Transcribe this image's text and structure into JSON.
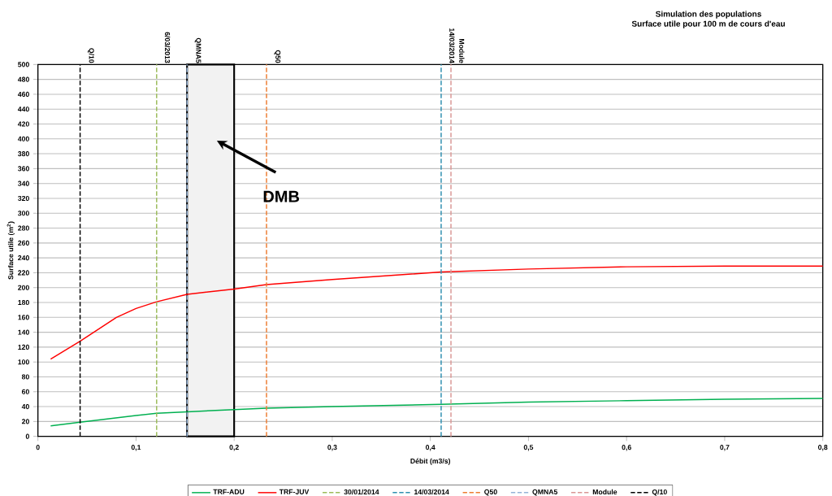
{
  "chart_data": {
    "type": "line",
    "title": "Simulation des populations",
    "subtitle": "Surface utile pour 100 m de cours d'eau",
    "xlabel": "Débit (m3/s)",
    "ylabel": "Surface utile (m$^{2}$)",
    "xlim": [
      0,
      0.8
    ],
    "xticks": [
      0,
      {
        "value": 0.1,
        "label": "0,1"
      },
      {
        "value": 0.2,
        "label": "0,2"
      },
      {
        "value": 0.3,
        "label": "0,3"
      },
      {
        "value": 0.4,
        "label": "0,4"
      },
      {
        "value": 0.5,
        "label": "0,5"
      },
      {
        "value": 0.6,
        "label": "0,6"
      },
      {
        "value": 0.7,
        "label": "0,7"
      },
      {
        "value": 0.8,
        "label": "0,8"
      }
    ],
    "ylim": [
      0,
      500
    ],
    "yticks": [
      0,
      20,
      40,
      60,
      80,
      100,
      120,
      140,
      160,
      180,
      200,
      220,
      240,
      260,
      280,
      300,
      320,
      340,
      360,
      380,
      400,
      420,
      440,
      460,
      480,
      500
    ],
    "grid": "y",
    "legend": "bottom",
    "marker": "none",
    "series": [
      {
        "name": "TRF-ADU",
        "color": "#00b050",
        "line_style": "solid",
        "x": [
          0.013,
          0.043,
          0.1,
          0.121,
          0.152,
          0.2,
          0.233,
          0.3,
          0.411,
          0.5,
          0.6,
          0.7,
          0.8
        ],
        "values": [
          14,
          19,
          28,
          31,
          33,
          36,
          38,
          40,
          43,
          46,
          48,
          50,
          51
        ]
      },
      {
        "name": "TRF-JUV",
        "color": "#ff0000",
        "line_style": "solid",
        "x": [
          0.013,
          0.043,
          0.08,
          0.1,
          0.121,
          0.152,
          0.2,
          0.233,
          0.3,
          0.411,
          0.5,
          0.6,
          0.7,
          0.8
        ],
        "values": [
          104,
          128,
          160,
          172,
          181,
          191,
          198,
          204,
          211,
          221,
          225,
          228,
          229,
          229
        ]
      },
      {
        "name": "30/01/2014",
        "color": "#9bbb59",
        "line_style": "dashed",
        "x": [
          0.121,
          0.121
        ],
        "values": [
          0,
          500
        ]
      },
      {
        "name": "14/03/2014",
        "color": "#2e8fb0",
        "line_style": "dashed",
        "x": [
          0.411,
          0.411
        ],
        "values": [
          0,
          500
        ]
      },
      {
        "name": "Q50",
        "color": "#ed7d31",
        "line_style": "dashed",
        "x": [
          0.233,
          0.233
        ],
        "values": [
          0,
          500
        ]
      },
      {
        "name": "QMNA5",
        "color": "#95b3d7",
        "line_style": "dashed",
        "x": [
          0.152,
          0.152
        ],
        "values": [
          0,
          500
        ]
      },
      {
        "name": "Module",
        "color": "#d99694",
        "line_style": "dashed",
        "x": [
          0.421,
          0.421
        ],
        "values": [
          0,
          500
        ]
      },
      {
        "name": "Q/10",
        "color": "#000000",
        "line_style": "dashed",
        "x": [
          0.043,
          0.043
        ],
        "values": [
          0,
          500
        ]
      }
    ],
    "bands": [
      {
        "axis": "x",
        "from": 0.152,
        "to": 0.2,
        "color": "#f2f2f2"
      }
    ],
    "annotations": [
      {
        "text": "Q/10",
        "x": 0.043,
        "y": 500
      },
      {
        "text": "6/03/2013",
        "x": 0.121,
        "y": 500
      },
      {
        "text": "QMNA5",
        "x": 0.152,
        "y": 500
      },
      {
        "text": "Q50",
        "x": 0.233,
        "y": 500
      },
      {
        "text": "14/03/2014",
        "x": 0.411,
        "y": 500
      },
      {
        "text": "Module",
        "x": 0.421,
        "y": 500
      },
      "DMB"
    ]
  }
}
